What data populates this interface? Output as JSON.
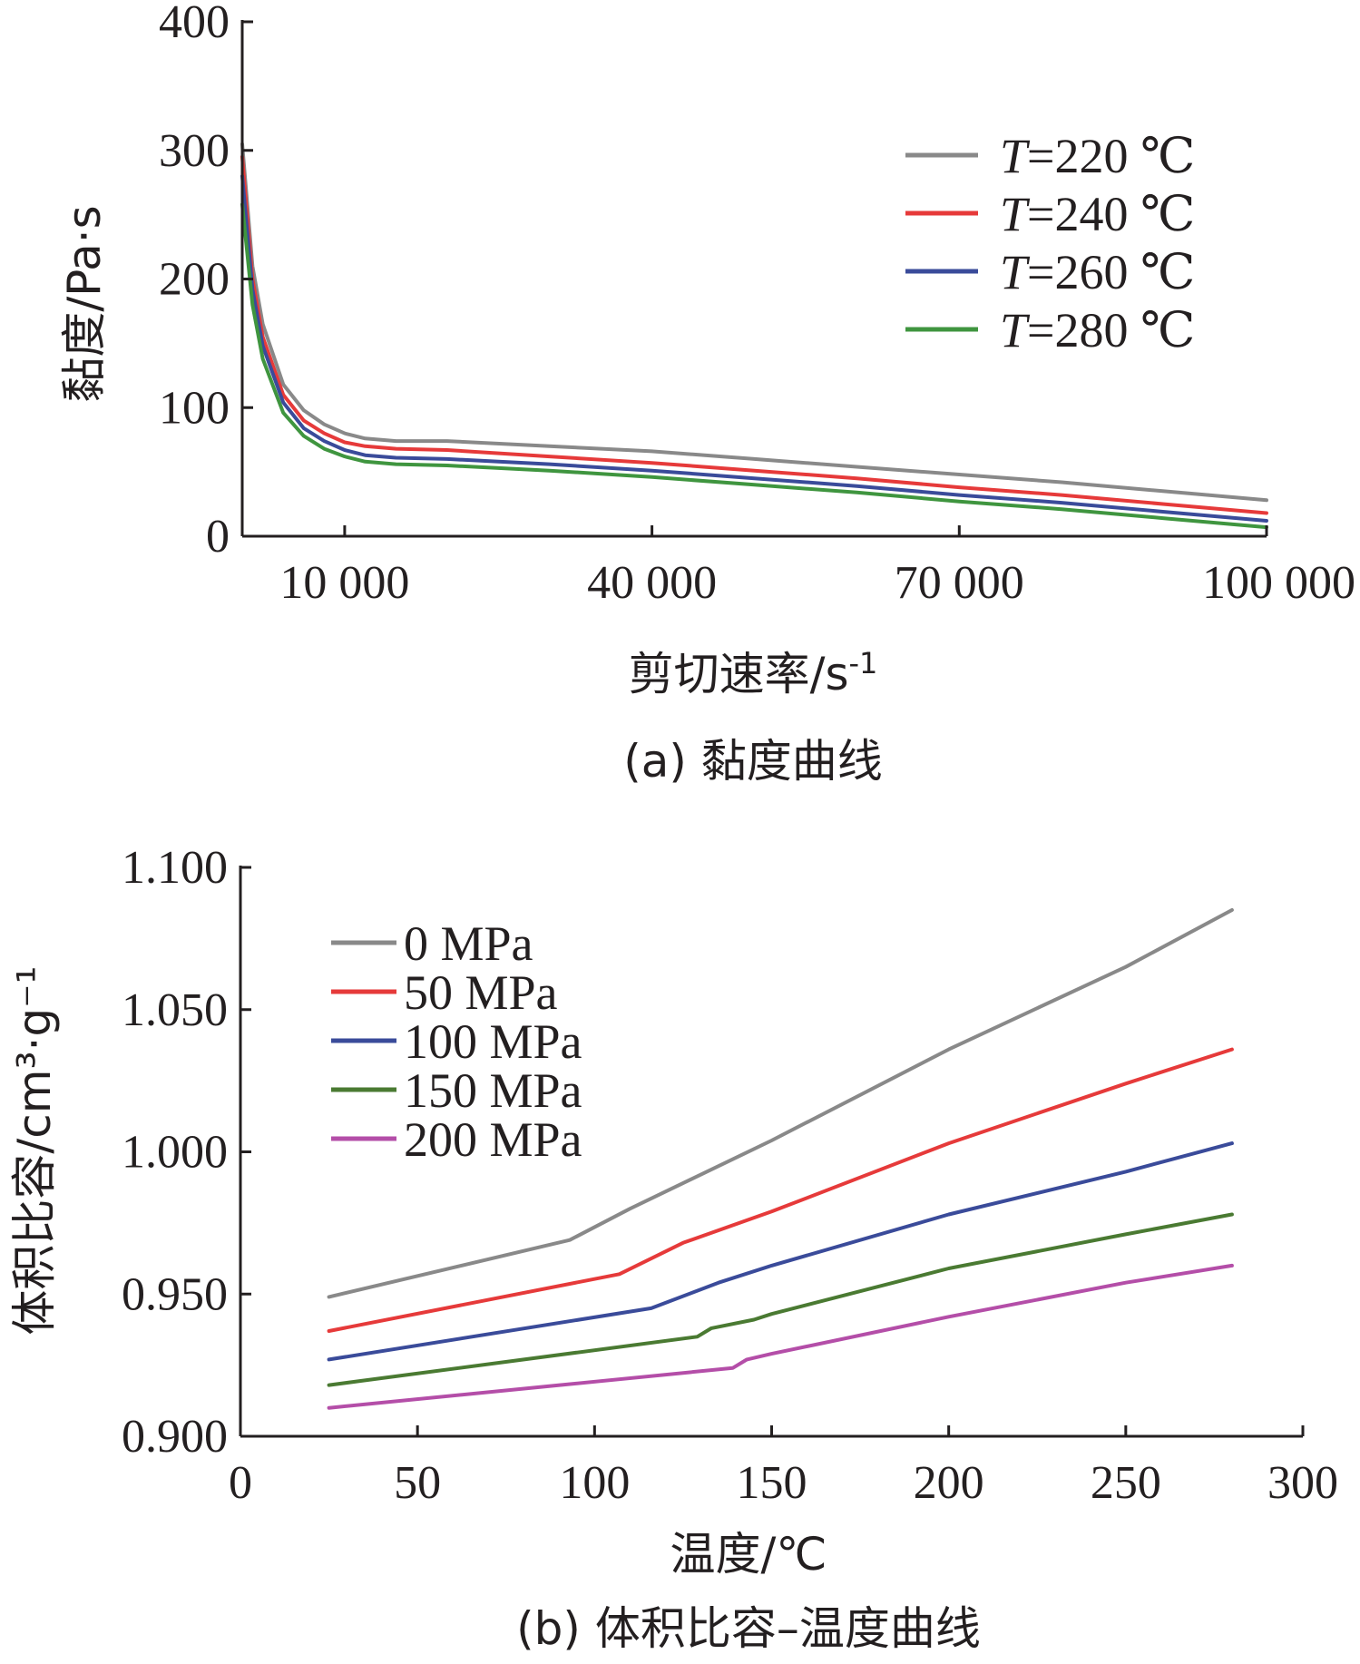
{
  "chart_data": [
    {
      "type": "line",
      "caption": "(a) 黏度曲线",
      "xlabel": "剪切速率/s",
      "xlabel_sup": "-1",
      "ylabel": "黏度/Pa·s",
      "xlim": [
        0,
        100000
      ],
      "ylim": [
        0,
        400
      ],
      "xticks": [
        10000,
        40000,
        70000,
        100000
      ],
      "xtick_labels": [
        "10 000",
        "40 000",
        "70 000",
        "100 000"
      ],
      "yticks": [
        0,
        100,
        200,
        300,
        400
      ],
      "ytick_labels": [
        "0",
        "100",
        "200",
        "300",
        "400"
      ],
      "legend_position": "top-right",
      "series": [
        {
          "name": "T=220 ℃",
          "name_italic": "T",
          "name_rest": "=220 ℃",
          "color": "#898989",
          "points": [
            [
              0,
              305
            ],
            [
              1000,
              210
            ],
            [
              2000,
              165
            ],
            [
              4000,
              118
            ],
            [
              6000,
              98
            ],
            [
              8000,
              87
            ],
            [
              10000,
              80
            ],
            [
              12000,
              76
            ],
            [
              15000,
              74
            ],
            [
              20000,
              74
            ],
            [
              30000,
              70
            ],
            [
              40000,
              66
            ],
            [
              50000,
              60
            ],
            [
              60000,
              54
            ],
            [
              70000,
              48
            ],
            [
              80000,
              42
            ],
            [
              90000,
              35
            ],
            [
              100000,
              28
            ]
          ]
        },
        {
          "name": "T=240 ℃",
          "name_italic": "T",
          "name_rest": "=240 ℃",
          "color": "#e63a3a",
          "points": [
            [
              0,
              295
            ],
            [
              1000,
              200
            ],
            [
              2000,
              155
            ],
            [
              4000,
              110
            ],
            [
              6000,
              90
            ],
            [
              8000,
              80
            ],
            [
              10000,
              73
            ],
            [
              12000,
              70
            ],
            [
              15000,
              68
            ],
            [
              20000,
              67
            ],
            [
              30000,
              62
            ],
            [
              40000,
              57
            ],
            [
              50000,
              51
            ],
            [
              60000,
              45
            ],
            [
              70000,
              38
            ],
            [
              80000,
              32
            ],
            [
              90000,
              25
            ],
            [
              100000,
              18
            ]
          ]
        },
        {
          "name": "T=260 ℃",
          "name_italic": "T",
          "name_rest": "=260 ℃",
          "color": "#3a4b9a",
          "points": [
            [
              0,
              280
            ],
            [
              1000,
              192
            ],
            [
              2000,
              148
            ],
            [
              4000,
              104
            ],
            [
              6000,
              84
            ],
            [
              8000,
              74
            ],
            [
              10000,
              67
            ],
            [
              12000,
              63
            ],
            [
              15000,
              61
            ],
            [
              20000,
              60
            ],
            [
              30000,
              56
            ],
            [
              40000,
              51
            ],
            [
              50000,
              45
            ],
            [
              60000,
              39
            ],
            [
              70000,
              32
            ],
            [
              80000,
              26
            ],
            [
              90000,
              19
            ],
            [
              100000,
              12
            ]
          ]
        },
        {
          "name": "T=280 ℃",
          "name_italic": "T",
          "name_rest": "=280 ℃",
          "color": "#3f953f",
          "points": [
            [
              0,
              258
            ],
            [
              1000,
              180
            ],
            [
              2000,
              138
            ],
            [
              4000,
              96
            ],
            [
              6000,
              78
            ],
            [
              8000,
              68
            ],
            [
              10000,
              62
            ],
            [
              12000,
              58
            ],
            [
              15000,
              56
            ],
            [
              20000,
              55
            ],
            [
              30000,
              51
            ],
            [
              40000,
              46
            ],
            [
              50000,
              40
            ],
            [
              60000,
              34
            ],
            [
              70000,
              27
            ],
            [
              80000,
              21
            ],
            [
              90000,
              14
            ],
            [
              100000,
              7
            ]
          ]
        }
      ]
    },
    {
      "type": "line",
      "caption": "(b) 体积比容–温度曲线",
      "xlabel": "温度/℃",
      "ylabel": "体积比容/cm³·g⁻¹",
      "xlim": [
        0,
        300
      ],
      "ylim": [
        0.9,
        1.1
      ],
      "xticks": [
        0,
        50,
        100,
        150,
        200,
        250,
        300
      ],
      "xtick_labels": [
        "0",
        "50",
        "100",
        "150",
        "200",
        "250",
        "300"
      ],
      "yticks": [
        0.9,
        0.95,
        1.0,
        1.05,
        1.1
      ],
      "ytick_labels": [
        "0.900",
        "0.950",
        "1.000",
        "1.050",
        "1.100"
      ],
      "legend_position": "top-left",
      "series": [
        {
          "name": "0 MPa",
          "color": "#898989",
          "points": [
            [
              25,
              0.949
            ],
            [
              93,
              0.969
            ],
            [
              110,
              0.98
            ],
            [
              150,
              1.004
            ],
            [
              200,
              1.036
            ],
            [
              250,
              1.065
            ],
            [
              280,
              1.085
            ]
          ]
        },
        {
          "name": "50 MPa",
          "color": "#e63a3a",
          "points": [
            [
              25,
              0.937
            ],
            [
              107,
              0.957
            ],
            [
              125,
              0.968
            ],
            [
              150,
              0.979
            ],
            [
              200,
              1.003
            ],
            [
              250,
              1.024
            ],
            [
              280,
              1.036
            ]
          ]
        },
        {
          "name": "100 MPa",
          "color": "#3a4b9a",
          "points": [
            [
              25,
              0.927
            ],
            [
              116,
              0.945
            ],
            [
              135,
              0.954
            ],
            [
              150,
              0.96
            ],
            [
              200,
              0.978
            ],
            [
              250,
              0.993
            ],
            [
              280,
              1.003
            ]
          ]
        },
        {
          "name": "150 MPa",
          "color": "#4a7a32",
          "points": [
            [
              25,
              0.918
            ],
            [
              129,
              0.935
            ],
            [
              133,
              0.938
            ],
            [
              145,
              0.941
            ],
            [
              150,
              0.943
            ],
            [
              200,
              0.959
            ],
            [
              250,
              0.971
            ],
            [
              280,
              0.978
            ]
          ]
        },
        {
          "name": "200 MPa",
          "color": "#b44ea8",
          "points": [
            [
              25,
              0.91
            ],
            [
              139,
              0.924
            ],
            [
              143,
              0.927
            ],
            [
              150,
              0.929
            ],
            [
              200,
              0.942
            ],
            [
              250,
              0.954
            ],
            [
              280,
              0.96
            ]
          ]
        }
      ]
    }
  ]
}
